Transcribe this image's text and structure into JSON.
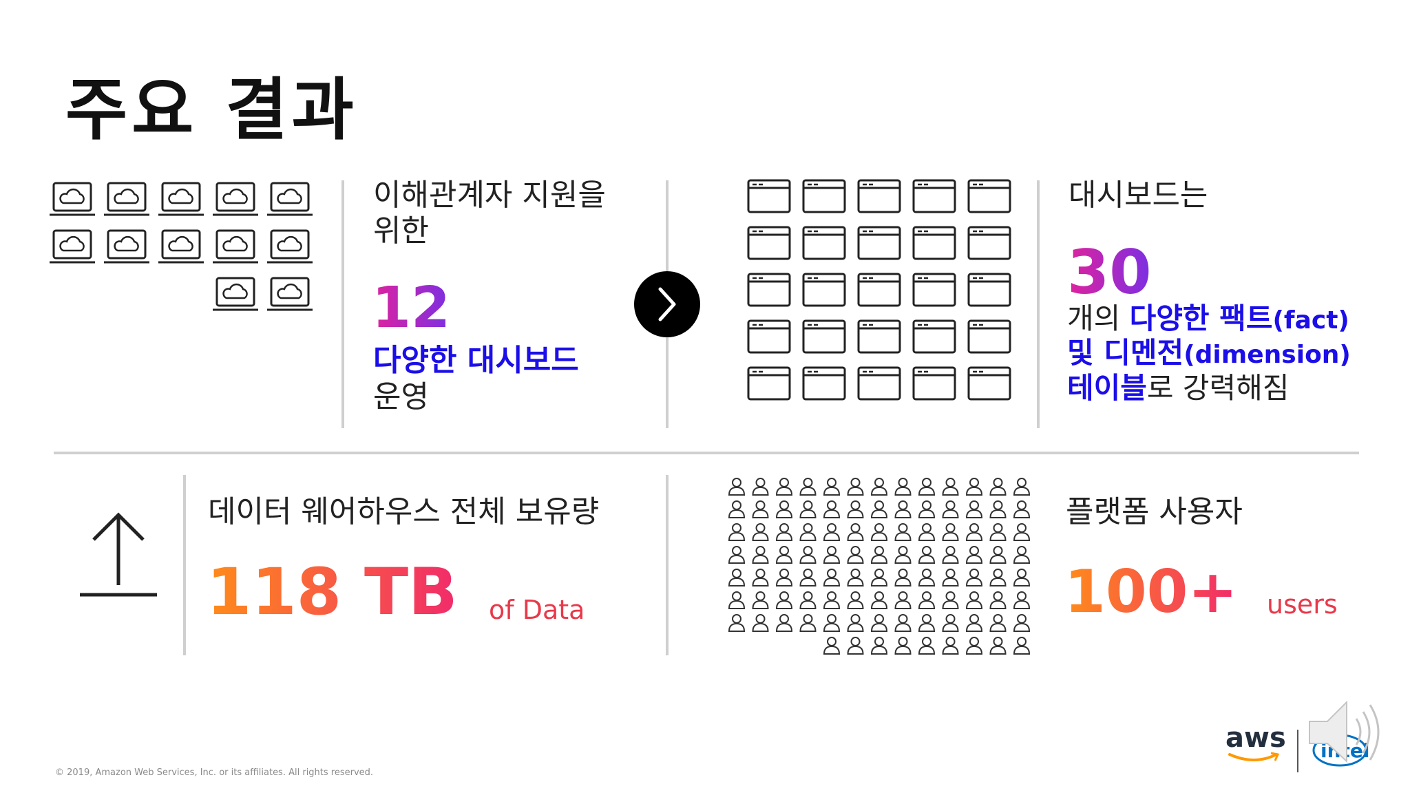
{
  "slide": {
    "title": "주요 결과",
    "footer": "© 2019, Amazon Web Services, Inc. or its affiliates. All rights reserved."
  },
  "panel1": {
    "label_line1": "이해관계자 지원을",
    "label_line2": "위한",
    "number": "12",
    "highlight": "다양한 대시보드",
    "suffix": "운영"
  },
  "panel2": {
    "label": "대시보드는",
    "number": "30",
    "line1_prefix": "개의 ",
    "line1_highlight": "다양한 팩트",
    "line1_paren": "(fact)",
    "line2_highlight": "및 디멘전",
    "line2_paren": "(dimension)",
    "line3_highlight": "테이블",
    "line3_suffix": "로 강력해짐"
  },
  "panel3": {
    "label": "데이터 웨어하우스 전체 보유량",
    "number": "118 TB",
    "unit": "of Data"
  },
  "panel4": {
    "label": "플랫폼 사용자",
    "number": "100+",
    "unit": "users"
  },
  "logos": {
    "aws": "aws",
    "intel": "intel"
  },
  "colors": {
    "blue_highlight": "#1b0ee8",
    "magenta_gradient_start": "#e0229d",
    "purple_gradient_end": "#7b2fe3",
    "orange_gradient_start": "#ff8c1a",
    "red_gradient_end": "#f12b6b",
    "unit_text": "#e8394a",
    "divider": "#cfcfcf"
  },
  "icons": {
    "panel1": "laptop-cloud-icon",
    "panel2": "browser-window-icon",
    "panel3": "upload-arrow-icon",
    "panel4": "user-icon",
    "next": "chevron-right-icon",
    "speaker": "speaker-icon"
  }
}
